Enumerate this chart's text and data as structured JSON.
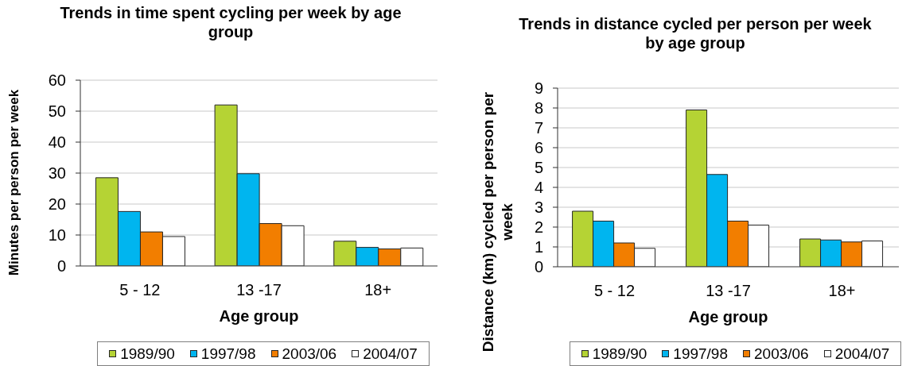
{
  "chart_data": [
    {
      "type": "bar",
      "title": "Trends in time spent cycling per week by age group",
      "xlabel": "Age group",
      "ylabel": "Minutes per person per week",
      "categories": [
        "5 - 12",
        "13 -17",
        "18+"
      ],
      "series": [
        {
          "name": "1989/90",
          "color": "#b5d334",
          "values": [
            28.5,
            52,
            8
          ]
        },
        {
          "name": "1997/98",
          "color": "#00b5ef",
          "values": [
            17.6,
            29.8,
            6
          ]
        },
        {
          "name": "2003/06",
          "color": "#f27e00",
          "values": [
            11,
            13.7,
            5.5
          ]
        },
        {
          "name": "2004/07",
          "color": "#ffffff",
          "values": [
            9.5,
            13,
            5.8
          ]
        }
      ],
      "ylim": [
        0,
        60
      ],
      "yticks": [
        0,
        10,
        20,
        30,
        40,
        50,
        60
      ],
      "grid": "y",
      "legend": "bottom"
    },
    {
      "type": "bar",
      "title": "Trends in distance cycled per person per week by age group",
      "xlabel": "Age group",
      "ylabel": "Distance (km) cycled per person per week",
      "categories": [
        "5 - 12",
        "13 -17",
        "18+"
      ],
      "series": [
        {
          "name": "1989/90",
          "color": "#b5d334",
          "values": [
            2.8,
            7.9,
            1.4
          ]
        },
        {
          "name": "1997/98",
          "color": "#00b5ef",
          "values": [
            2.3,
            4.65,
            1.35
          ]
        },
        {
          "name": "2003/06",
          "color": "#f27e00",
          "values": [
            1.2,
            2.3,
            1.25
          ]
        },
        {
          "name": "2004/07",
          "color": "#ffffff",
          "values": [
            0.93,
            2.1,
            1.3
          ]
        }
      ],
      "ylim": [
        0,
        9
      ],
      "yticks": [
        0,
        1,
        2,
        3,
        4,
        5,
        6,
        7,
        8,
        9
      ],
      "grid": "y",
      "legend": "bottom"
    }
  ]
}
